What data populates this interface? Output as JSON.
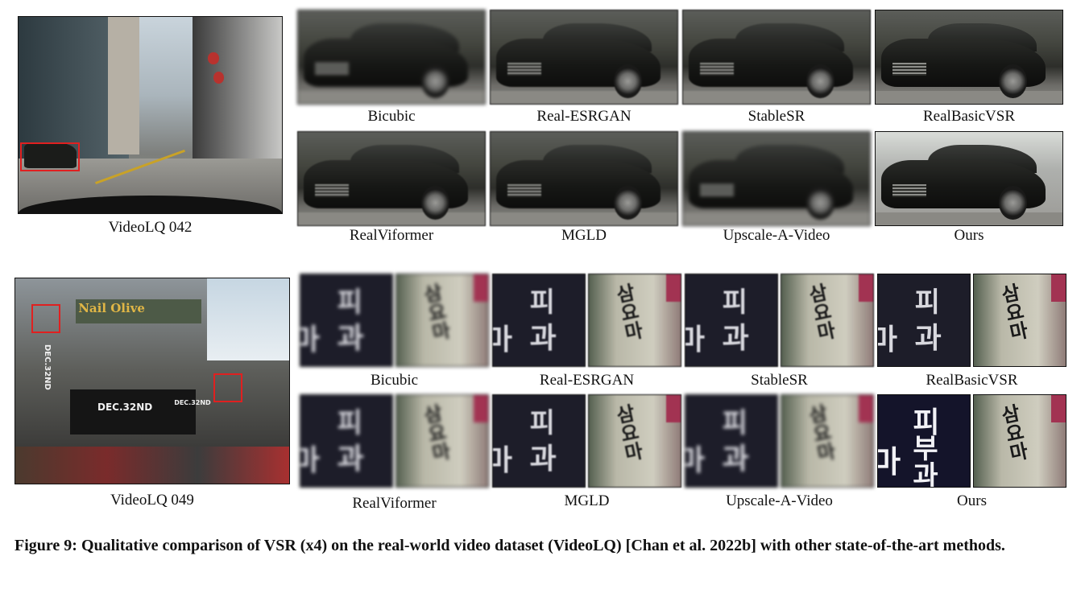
{
  "rows": [
    {
      "source_label": "VideoLQ 042",
      "methods": [
        "Bicubic",
        "Real-ESRGAN",
        "StableSR",
        "RealBasicVSR",
        "RealViformer",
        "MGLD",
        "Upscale-A-Video",
        "Ours"
      ]
    },
    {
      "source_label": "VideoLQ 049",
      "methods": [
        "Bicubic",
        "Real-ESRGAN",
        "StableSR",
        "RealBasicVSR",
        "RealViformer",
        "MGLD",
        "Upscale-A-Video",
        "Ours"
      ],
      "scene_text": {
        "storefront": "Nail Olive",
        "banner": "DEC.32ND",
        "banner_side": "DEC.32ND",
        "vertical": "DEC.32ND",
        "sign_glyphs": "피부과"
      }
    }
  ],
  "caption": "Figure 9: Qualitative comparison of VSR (x4) on the real-world video dataset (VideoLQ) [Chan et al. 2022b] with other state-of-the-art methods.",
  "colors": {
    "highlight_box": "#e02020"
  }
}
